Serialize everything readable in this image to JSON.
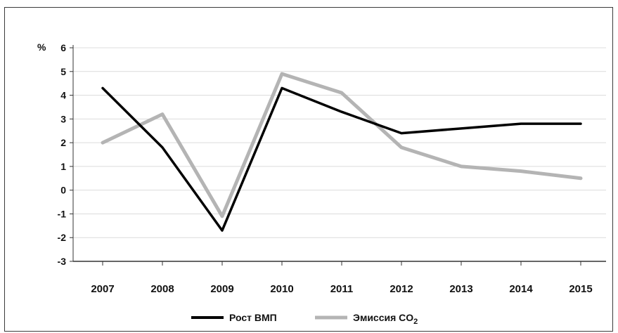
{
  "chart_data": {
    "type": "line",
    "title": "",
    "xlabel": "",
    "ylabel": "",
    "y_unit_label": "%",
    "categories": [
      "2007",
      "2008",
      "2009",
      "2010",
      "2011",
      "2012",
      "2013",
      "2014",
      "2015"
    ],
    "y_ticks": [
      "6",
      "5",
      "4",
      "3",
      "2",
      "1",
      "0",
      "-1",
      "-2",
      "-3"
    ],
    "ylim": [
      -3,
      6
    ],
    "grid": true,
    "legend_position": "bottom",
    "series": [
      {
        "name": "Рост ВМП",
        "color": "#000000",
        "values": [
          4.3,
          1.8,
          -1.7,
          4.3,
          3.3,
          2.4,
          2.6,
          2.8,
          2.8
        ]
      },
      {
        "name": "Эмиссия CO",
        "name_subscript": "2",
        "color": "#b4b4b4",
        "values": [
          2.0,
          3.2,
          -1.1,
          4.9,
          4.1,
          1.8,
          1.0,
          0.8,
          0.5
        ]
      }
    ]
  }
}
